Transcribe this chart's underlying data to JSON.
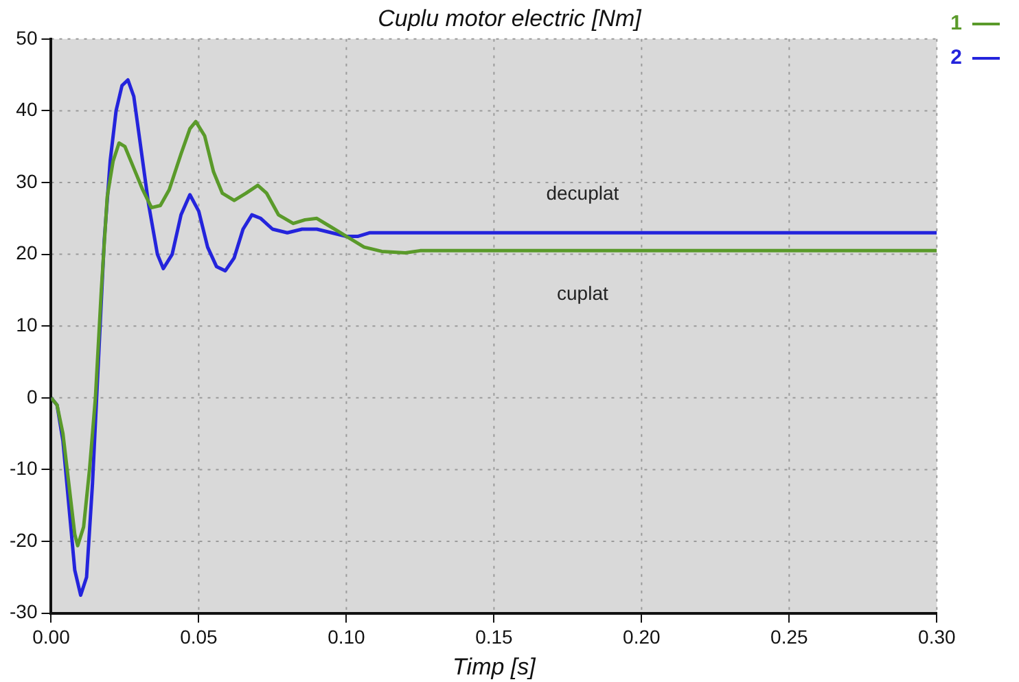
{
  "chart_data": {
    "type": "line",
    "title": "Cuplu motor electric [Nm]",
    "xlabel": "Timp [s]",
    "xlim": [
      0,
      0.3
    ],
    "xticks": [
      {
        "value": 0,
        "label": "0.00"
      },
      {
        "value": 0.05,
        "label": "0.05"
      },
      {
        "value": 0.1,
        "label": "0.10"
      },
      {
        "value": 0.15,
        "label": "0.15"
      },
      {
        "value": 0.2,
        "label": "0.20"
      },
      {
        "value": 0.25,
        "label": "0.25"
      },
      {
        "value": 0.3,
        "label": "0.30"
      }
    ],
    "ylim": [
      -30,
      50
    ],
    "yticks": [
      -30,
      -20,
      -10,
      0,
      10,
      20,
      30,
      40,
      50
    ],
    "grid": true,
    "legend": "top right",
    "marker": "none",
    "line_style": "solid",
    "annotations": [
      "decuplat",
      "cuplat"
    ],
    "series": [
      {
        "name": "1",
        "color": "#5a9a2a",
        "x": [
          0,
          0.002,
          0.004,
          0.006,
          0.008,
          0.009,
          0.011,
          0.013,
          0.015,
          0.017,
          0.019,
          0.021,
          0.023,
          0.025,
          0.028,
          0.031,
          0.034,
          0.037,
          0.04,
          0.044,
          0.047,
          0.049,
          0.052,
          0.055,
          0.058,
          0.062,
          0.066,
          0.07,
          0.073,
          0.077,
          0.082,
          0.086,
          0.09,
          0.094,
          0.098,
          0.102,
          0.106,
          0.112,
          0.12,
          0.125,
          0.2,
          0.3
        ],
        "values": [
          0,
          -1,
          -5,
          -12,
          -19,
          -20.6,
          -18,
          -10,
          0,
          15,
          28,
          33,
          35.5,
          35,
          32,
          29,
          26.5,
          26.8,
          29,
          34,
          37.5,
          38.5,
          36.5,
          31.5,
          28.5,
          27.5,
          28.5,
          29.6,
          28.5,
          25.5,
          24.3,
          24.8,
          25,
          24,
          23,
          22,
          21,
          20.4,
          20.2,
          20.5,
          20.5,
          20.5
        ]
      },
      {
        "name": "2",
        "color": "#2424dc",
        "x": [
          0,
          0.002,
          0.004,
          0.006,
          0.008,
          0.01,
          0.012,
          0.014,
          0.016,
          0.018,
          0.02,
          0.022,
          0.024,
          0.026,
          0.028,
          0.03,
          0.033,
          0.036,
          0.038,
          0.041,
          0.044,
          0.047,
          0.05,
          0.053,
          0.056,
          0.059,
          0.062,
          0.065,
          0.068,
          0.071,
          0.075,
          0.08,
          0.085,
          0.09,
          0.095,
          0.1,
          0.104,
          0.108,
          0.12,
          0.2,
          0.3
        ],
        "values": [
          0,
          -1,
          -6,
          -15,
          -24,
          -27.5,
          -25,
          -12,
          5,
          22,
          33,
          40,
          43.5,
          44.3,
          42,
          36,
          27,
          20,
          18,
          20,
          25.5,
          28.3,
          26,
          21,
          18.3,
          17.7,
          19.5,
          23.5,
          25.5,
          25,
          23.5,
          23,
          23.5,
          23.5,
          23,
          22.5,
          22.5,
          23,
          23,
          23,
          23
        ]
      }
    ]
  }
}
